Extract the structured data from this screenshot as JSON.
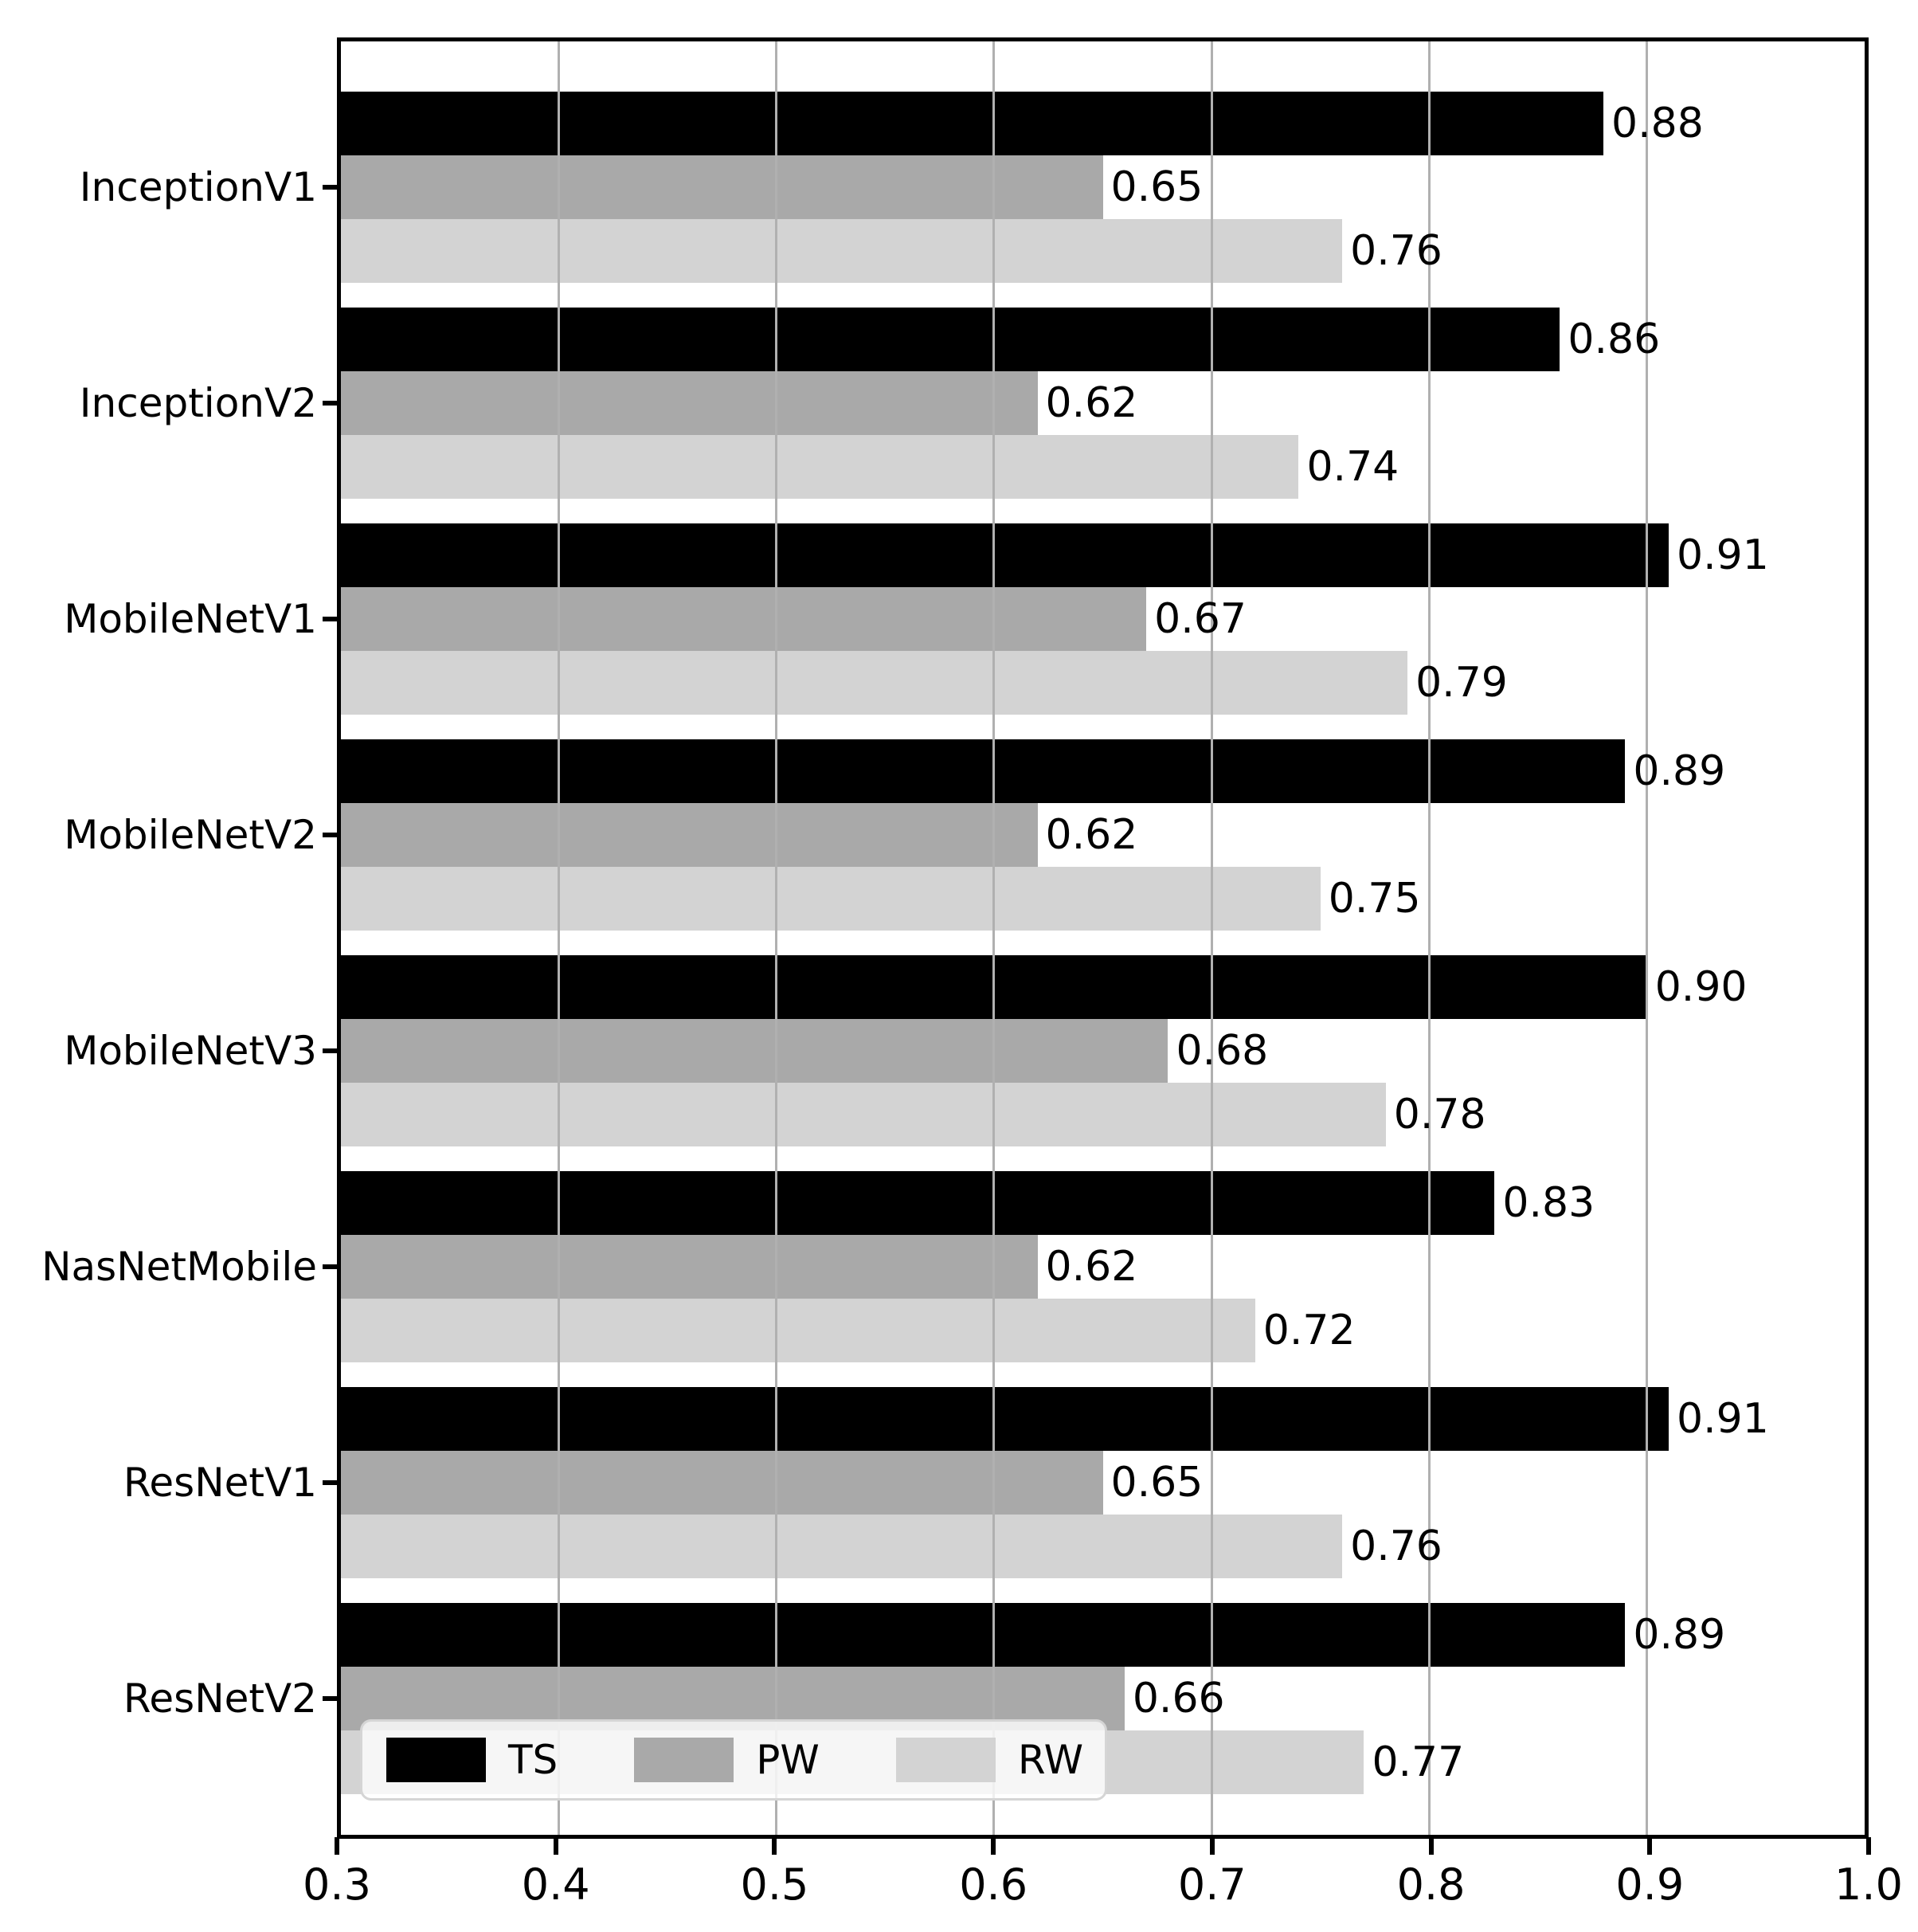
{
  "chart_data": {
    "type": "bar",
    "orientation": "horizontal",
    "title": "",
    "xlabel": "",
    "ylabel": "",
    "categories": [
      "InceptionV1",
      "InceptionV2",
      "MobileNetV1",
      "MobileNetV2",
      "MobileNetV3",
      "NasNetMobile",
      "ResNetV1",
      "ResNetV2"
    ],
    "series": [
      {
        "name": "TS",
        "color": "#000000",
        "values": [
          0.88,
          0.86,
          0.91,
          0.89,
          0.9,
          0.83,
          0.91,
          0.89
        ]
      },
      {
        "name": "PW",
        "color": "#a9a9a9",
        "values": [
          0.65,
          0.62,
          0.67,
          0.62,
          0.68,
          0.62,
          0.65,
          0.66
        ]
      },
      {
        "name": "RW",
        "color": "#d3d3d3",
        "values": [
          0.76,
          0.74,
          0.79,
          0.75,
          0.78,
          0.72,
          0.76,
          0.77
        ]
      }
    ],
    "xlim": [
      0.3,
      1.0
    ],
    "xtick_labels": [
      "0.3",
      "0.4",
      "0.5",
      "0.6",
      "0.7",
      "0.8",
      "0.9",
      "1.0"
    ],
    "value_label_decimals": 2,
    "grid": true,
    "gridline_color": "#b0b0b0",
    "axis_color": "#000000",
    "background_color": "#ffffff",
    "legend_position": "lower left"
  }
}
